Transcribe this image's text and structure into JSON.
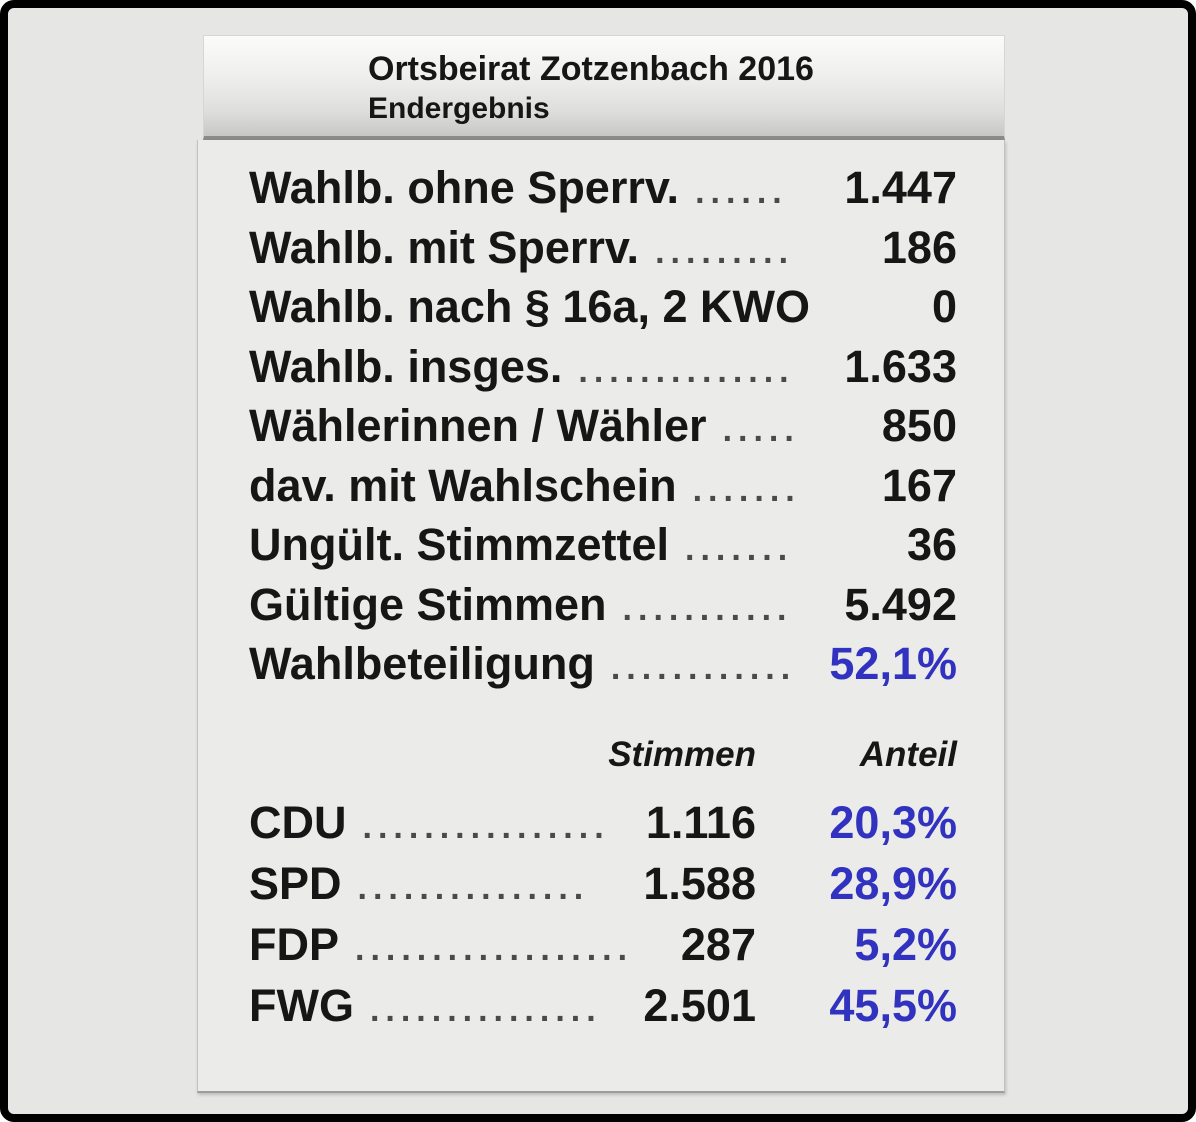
{
  "header": {
    "title": "Ortsbeirat Zotzenbach 2016",
    "subtitle": "Endergebnis"
  },
  "stats": [
    {
      "label": "Wahlb. ohne Sperrv.",
      "dots": "......",
      "value": "1.447"
    },
    {
      "label": "Wahlb. mit Sperrv.",
      "dots": ".........",
      "value": "186"
    },
    {
      "label": "Wahlb. nach § 16a, 2 KWO",
      "dots": "",
      "value": "0"
    },
    {
      "label": "Wahlb. insges.",
      "dots": "..............",
      "value": "1.633"
    },
    {
      "label": "Wählerinnen / Wähler",
      "dots": ".....",
      "value": "850"
    },
    {
      "label": "dav. mit Wahlschein",
      "dots": ".......",
      "value": "167"
    },
    {
      "label": "Ungült. Stimmzettel",
      "dots": ".......",
      "value": "36"
    },
    {
      "label": "Gültige Stimmen",
      "dots": "...........",
      "value": "5.492"
    },
    {
      "label": "Wahlbeteiligung",
      "dots": "............",
      "value": "52,1%"
    }
  ],
  "results": {
    "columns": {
      "votes": "Stimmen",
      "share": "Anteil"
    },
    "rows": [
      {
        "party": "CDU",
        "dots": "................",
        "votes": "1.116",
        "share": "20,3%"
      },
      {
        "party": "SPD",
        "dots": "...............",
        "votes": "1.588",
        "share": "28,9%"
      },
      {
        "party": "FDP",
        "dots": "..................",
        "votes": "287",
        "share": "5,2%"
      },
      {
        "party": "FWG",
        "dots": "...............",
        "votes": "2.501",
        "share": "45,5%"
      }
    ]
  },
  "colors": {
    "accent_blue": "#3232c0",
    "text_black": "#161616",
    "dots_gray": "#4a4a4a",
    "panel_body_bg": "#ebebe9",
    "outer_bg": "#e6e6e4"
  }
}
